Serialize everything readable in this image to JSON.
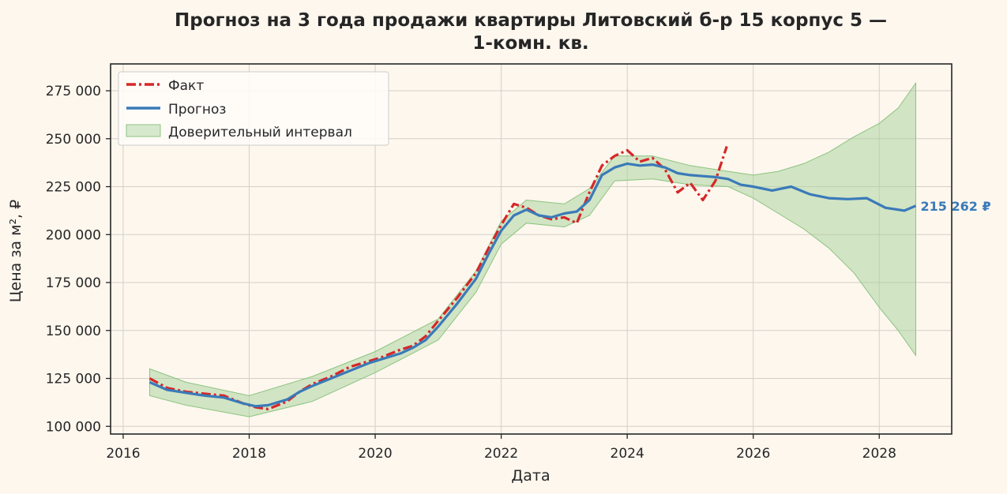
{
  "chart_data": {
    "type": "line",
    "title_line1": "Прогноз на 3 года продажи квартиры  Литовский б-р 15 корпус 5 —",
    "title_line2": "1-комн. кв.",
    "xlabel": "Дата",
    "ylabel": "Цена за м², ₽",
    "xlim": [
      2015.8,
      2029.15
    ],
    "ylim": [
      96000,
      289000
    ],
    "x_ticks": [
      2016,
      2018,
      2020,
      2022,
      2024,
      2026,
      2028
    ],
    "x_tick_labels": [
      "2016",
      "2018",
      "2020",
      "2022",
      "2024",
      "2026",
      "2028"
    ],
    "y_ticks": [
      100000,
      125000,
      150000,
      175000,
      200000,
      225000,
      250000,
      275000
    ],
    "y_tick_labels": [
      "100 000",
      "125 000",
      "150 000",
      "175 000",
      "200 000",
      "225 000",
      "250 000",
      "275 000"
    ],
    "grid": true,
    "legend_position": "top-left",
    "colors": {
      "fact": "#d62728",
      "forecast": "#3a7ab8",
      "interval_fill": "#a5d29a",
      "interval_stroke": "#8cc47f",
      "axes": "#262626",
      "grid": "#d4d0c8",
      "background": "#fdf7ee"
    },
    "series": [
      {
        "name": "Факт",
        "style": "dash-dot",
        "x": [
          2016.42,
          2016.7,
          2017.0,
          2017.3,
          2017.6,
          2017.9,
          2018.1,
          2018.3,
          2018.6,
          2018.8,
          2019.0,
          2019.3,
          2019.6,
          2019.9,
          2020.1,
          2020.4,
          2020.6,
          2020.8,
          2021.0,
          2021.3,
          2021.6,
          2021.8,
          2022.0,
          2022.2,
          2022.4,
          2022.6,
          2022.8,
          2023.0,
          2023.2,
          2023.4,
          2023.6,
          2023.8,
          2024.0,
          2024.2,
          2024.4,
          2024.6,
          2024.8,
          2025.0,
          2025.2,
          2025.4,
          2025.58
        ],
        "y": [
          125000,
          120000,
          118000,
          117000,
          116000,
          112000,
          110000,
          109000,
          113000,
          118000,
          122000,
          126000,
          131000,
          134000,
          136000,
          140000,
          142000,
          147000,
          155000,
          167000,
          180000,
          193000,
          205000,
          216000,
          214000,
          210000,
          208000,
          209000,
          206000,
          222000,
          236000,
          241000,
          244000,
          238000,
          240000,
          234000,
          222000,
          227000,
          218000,
          228000,
          246000
        ]
      },
      {
        "name": "Прогноз",
        "style": "solid",
        "x": [
          2016.42,
          2016.7,
          2017.0,
          2017.3,
          2017.6,
          2017.9,
          2018.1,
          2018.3,
          2018.6,
          2018.8,
          2019.0,
          2019.3,
          2019.6,
          2019.9,
          2020.1,
          2020.4,
          2020.6,
          2020.8,
          2021.0,
          2021.3,
          2021.6,
          2021.8,
          2022.0,
          2022.2,
          2022.4,
          2022.6,
          2022.8,
          2023.0,
          2023.2,
          2023.4,
          2023.6,
          2023.8,
          2024.0,
          2024.2,
          2024.4,
          2024.6,
          2024.8,
          2025.0,
          2025.2,
          2025.4,
          2025.6,
          2025.8,
          2026.0,
          2026.3,
          2026.6,
          2026.9,
          2027.2,
          2027.5,
          2027.8,
          2028.1,
          2028.4,
          2028.58
        ],
        "y": [
          123000,
          119000,
          117500,
          116000,
          115000,
          112000,
          110500,
          111000,
          114000,
          118000,
          121000,
          125000,
          129000,
          133000,
          135000,
          138000,
          141000,
          145000,
          152000,
          164000,
          177000,
          190000,
          202000,
          210000,
          213000,
          210000,
          209000,
          211000,
          212000,
          218000,
          231000,
          235000,
          237000,
          236000,
          236500,
          235000,
          232000,
          231000,
          230500,
          230000,
          229000,
          226000,
          225000,
          223000,
          225000,
          221000,
          219000,
          218500,
          219000,
          214000,
          212500,
          215000
        ]
      }
    ],
    "interval": {
      "name": "Доверительный интервал",
      "x": [
        2016.42,
        2017.0,
        2018.0,
        2019.0,
        2020.0,
        2021.0,
        2021.6,
        2022.0,
        2022.4,
        2023.0,
        2023.4,
        2023.8,
        2024.4,
        2025.0,
        2025.6,
        2026.0,
        2026.4,
        2026.8,
        2027.2,
        2027.6,
        2028.0,
        2028.3,
        2028.58
      ],
      "upper": [
        130000,
        123000,
        116000,
        126000,
        139000,
        156000,
        181000,
        207000,
        218000,
        216000,
        224000,
        241000,
        241000,
        236000,
        233000,
        231000,
        233000,
        237000,
        243000,
        251000,
        258000,
        266000,
        279000
      ],
      "lower": [
        116000,
        111000,
        105000,
        113000,
        128000,
        145000,
        170000,
        195000,
        206000,
        204000,
        210000,
        228000,
        229000,
        226000,
        225000,
        219000,
        211000,
        203000,
        193000,
        180000,
        162000,
        150000,
        137000
      ]
    },
    "last_value_label": "215 262 ₽"
  }
}
